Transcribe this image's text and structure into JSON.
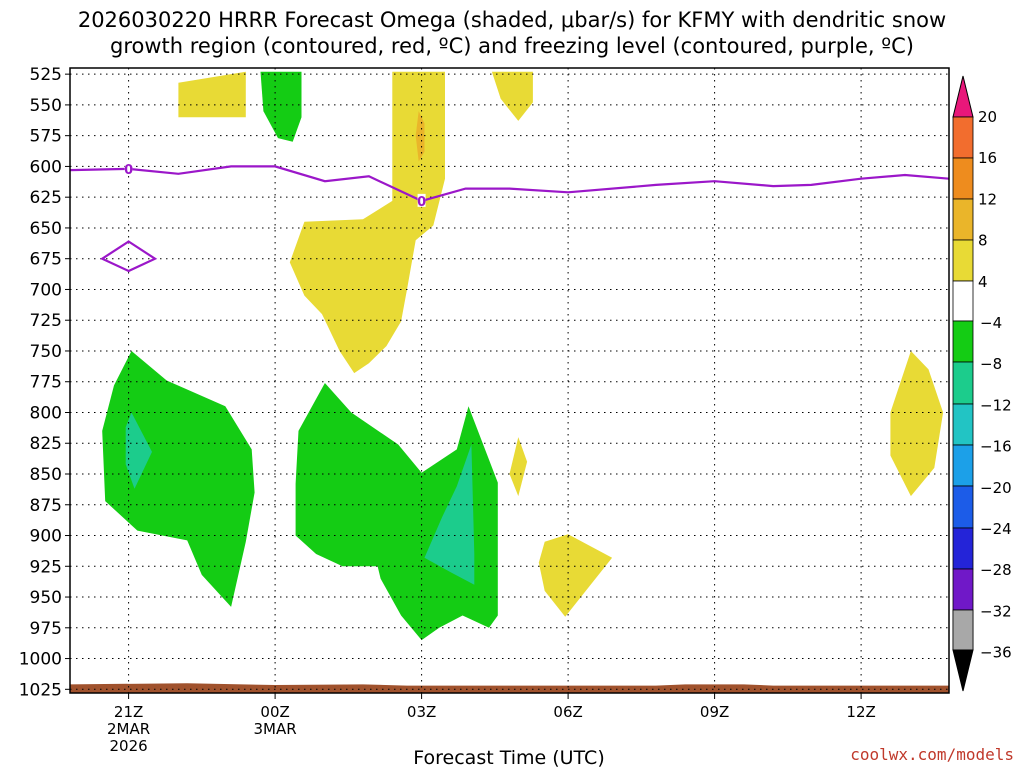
{
  "chart_data": {
    "type": "heatmap",
    "title_line1": "2026030220 HRRR Forecast Omega (shaded, μbar/s) for KFMY with dendritic snow",
    "title_line2": "growth region (contoured, red, ºC) and freezing level (contoured, purple, ºC)",
    "xlabel": "Forecast Time (UTC)",
    "credit": "coolwx.com/models",
    "x_hours_range": [
      -2,
      28
    ],
    "y_range_hpa": [
      520,
      1028
    ],
    "y_ticks": [
      "525",
      "550",
      "575",
      "600",
      "625",
      "650",
      "675",
      "700",
      "725",
      "750",
      "775",
      "800",
      "825",
      "850",
      "875",
      "900",
      "925",
      "950",
      "975",
      "1000",
      "1025"
    ],
    "x_ticks": [
      {
        "hour": 0,
        "lines": [
          "21Z",
          "2MAR",
          "2026"
        ]
      },
      {
        "hour": 5,
        "lines": [
          "00Z",
          "3MAR"
        ]
      },
      {
        "hour": 10,
        "lines": [
          "03Z"
        ]
      },
      {
        "hour": 15,
        "lines": [
          "06Z"
        ]
      },
      {
        "hour": 20,
        "lines": [
          "09Z"
        ]
      },
      {
        "hour": 25,
        "lines": [
          "12Z"
        ]
      }
    ],
    "colorbar": {
      "labels": [
        "20",
        "16",
        "12",
        "8",
        "4",
        "-4",
        "-8",
        "-12",
        "-16",
        "-20",
        "-24",
        "-28",
        "-32",
        "-36"
      ],
      "top_arrow_color": "#e8177a",
      "bottom_arrow_color": "#000000",
      "colors": [
        "#f23a3a",
        "#f26d2e",
        "#ee8c1e",
        "#eab52a",
        "#e8da35",
        "#ffffff",
        "#14cc14",
        "#1ccc8c",
        "#22c4c4",
        "#1ca0e8",
        "#1c5ce8",
        "#2424d8",
        "#7018c8",
        "#a818c0",
        "#a8a8a8"
      ]
    },
    "freezing_level": {
      "color": "#9b17c9",
      "label": "0",
      "points": [
        [
          -2,
          603
        ],
        [
          0,
          602
        ],
        [
          1.7,
          606
        ],
        [
          3.5,
          600
        ],
        [
          5,
          600
        ],
        [
          6.7,
          612
        ],
        [
          8.2,
          608
        ],
        [
          10,
          628
        ],
        [
          11.5,
          618
        ],
        [
          13,
          618
        ],
        [
          15,
          621
        ],
        [
          18,
          615
        ],
        [
          20,
          612
        ],
        [
          22,
          616
        ],
        [
          23.3,
          615
        ],
        [
          25,
          610
        ],
        [
          26.5,
          607
        ],
        [
          28,
          610
        ]
      ],
      "label_positions": [
        [
          0,
          602
        ],
        [
          10,
          628
        ]
      ],
      "loop": [
        [
          0,
          661
        ],
        [
          0.9,
          675
        ],
        [
          0,
          685
        ],
        [
          -0.9,
          675
        ]
      ]
    },
    "terrain": {
      "color": "#a0522d",
      "points": [
        [
          -2,
          1021
        ],
        [
          2,
          1020
        ],
        [
          5,
          1021.5
        ],
        [
          8,
          1021
        ],
        [
          9.5,
          1022
        ],
        [
          12,
          1022
        ],
        [
          18,
          1022
        ],
        [
          19,
          1021
        ],
        [
          21,
          1021
        ],
        [
          22,
          1022
        ],
        [
          28,
          1022
        ]
      ]
    },
    "omega_regions": [
      {
        "level": "4 to 8",
        "color": "#e8da35",
        "points": [
          [
            1.7,
            532
          ],
          [
            4,
            523
          ],
          [
            4,
            560
          ],
          [
            1.7,
            560
          ]
        ]
      },
      {
        "level": "4 to 8",
        "color": "#e8da35",
        "points": [
          [
            9,
            523
          ],
          [
            10.8,
            523
          ],
          [
            10.8,
            610
          ],
          [
            10.4,
            648
          ],
          [
            9.8,
            660
          ],
          [
            9.5,
            700
          ],
          [
            9.3,
            726
          ],
          [
            8.8,
            746
          ],
          [
            8.2,
            760
          ],
          [
            7.7,
            768
          ],
          [
            7.2,
            750
          ],
          [
            6.6,
            720
          ],
          [
            6,
            705
          ],
          [
            5.5,
            678
          ],
          [
            6.0,
            645
          ],
          [
            8.0,
            643
          ],
          [
            9.0,
            628
          ],
          [
            9.0,
            580
          ],
          [
            9.0,
            523
          ]
        ]
      },
      {
        "level": "8 to 12",
        "color": "#eab52a",
        "points": [
          [
            9.9,
            555
          ],
          [
            10.1,
            565
          ],
          [
            10.1,
            588
          ],
          [
            9.9,
            596
          ],
          [
            9.8,
            575
          ]
        ]
      },
      {
        "level": "-4 to -8",
        "color": "#14cc14",
        "points": [
          [
            4.5,
            523
          ],
          [
            5.9,
            523
          ],
          [
            5.9,
            560
          ],
          [
            5.6,
            580
          ],
          [
            5.1,
            577
          ],
          [
            4.6,
            555
          ]
        ]
      },
      {
        "level": "4 to 8",
        "color": "#e8da35",
        "points": [
          [
            12.4,
            523
          ],
          [
            13.8,
            523
          ],
          [
            13.8,
            548
          ],
          [
            13.3,
            563
          ],
          [
            12.7,
            545
          ]
        ]
      },
      {
        "level": "-4 to -8",
        "color": "#14cc14",
        "points": [
          [
            0.1,
            750
          ],
          [
            1.3,
            774
          ],
          [
            3.3,
            795
          ],
          [
            4.2,
            830
          ],
          [
            4.3,
            865
          ],
          [
            4.0,
            905
          ],
          [
            3.5,
            958
          ],
          [
            2.5,
            932
          ],
          [
            2.0,
            904
          ],
          [
            0.3,
            896
          ],
          [
            -0.8,
            872
          ],
          [
            -0.9,
            815
          ],
          [
            -0.5,
            778
          ]
        ]
      },
      {
        "level": "-8 to -12",
        "color": "#1ccc8c",
        "points": [
          [
            0.1,
            800
          ],
          [
            0.8,
            832
          ],
          [
            0.2,
            862
          ],
          [
            -0.1,
            842
          ],
          [
            -0.1,
            812
          ]
        ]
      },
      {
        "level": "-4 to -8",
        "color": "#14cc14",
        "points": [
          [
            6.7,
            776
          ],
          [
            7.6,
            800
          ],
          [
            9.2,
            826
          ],
          [
            10.0,
            849
          ],
          [
            11.2,
            830
          ],
          [
            11.6,
            795
          ],
          [
            12.6,
            857
          ],
          [
            12.6,
            885
          ],
          [
            12.6,
            965
          ],
          [
            12.3,
            975
          ],
          [
            11.4,
            965
          ],
          [
            10.6,
            975
          ],
          [
            10.0,
            985
          ],
          [
            9.3,
            965
          ],
          [
            8.6,
            935
          ],
          [
            8.5,
            925
          ],
          [
            7.3,
            925
          ],
          [
            6.4,
            915
          ],
          [
            5.7,
            900
          ],
          [
            5.7,
            858
          ],
          [
            5.8,
            815
          ]
        ]
      },
      {
        "level": "-8 to -12",
        "color": "#1ccc8c",
        "points": [
          [
            11.7,
            826
          ],
          [
            11.8,
            915
          ],
          [
            11.8,
            940
          ],
          [
            11.0,
            930
          ],
          [
            10.1,
            918
          ],
          [
            10.7,
            885
          ],
          [
            11.2,
            860
          ]
        ]
      },
      {
        "level": "4 to 8",
        "color": "#e8da35",
        "points": [
          [
            13.3,
            820
          ],
          [
            13.6,
            840
          ],
          [
            13.3,
            868
          ],
          [
            13.0,
            850
          ]
        ]
      },
      {
        "level": "4 to 8",
        "color": "#e8da35",
        "points": [
          [
            15.0,
            899
          ],
          [
            16.5,
            918
          ],
          [
            14.9,
            966
          ],
          [
            14.2,
            945
          ],
          [
            14.0,
            922
          ],
          [
            14.2,
            905
          ]
        ]
      },
      {
        "level": "4 to 8",
        "color": "#e8da35",
        "points": [
          [
            26.7,
            750
          ],
          [
            27.3,
            765
          ],
          [
            27.8,
            800
          ],
          [
            27.5,
            845
          ],
          [
            26.7,
            868
          ],
          [
            26.0,
            835
          ],
          [
            26.0,
            800
          ]
        ]
      }
    ]
  }
}
